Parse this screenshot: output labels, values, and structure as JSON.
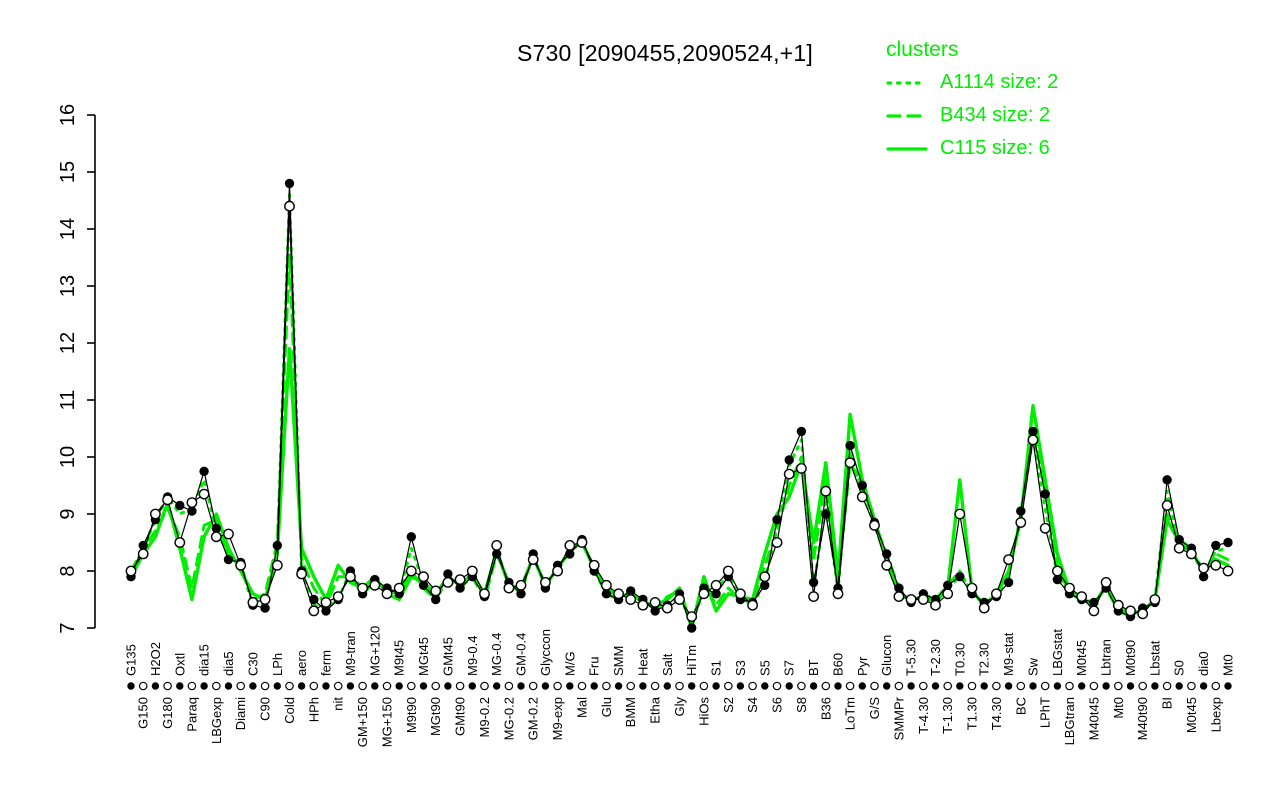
{
  "title": "S730 [2090455,2090524,+1]",
  "colors": {
    "cluster": "#00ee00",
    "probe": "#000000",
    "background": "#ffffff"
  },
  "legend": {
    "title": "clusters",
    "entries": [
      {
        "label": "A1114 size: 2",
        "line": "dotted"
      },
      {
        "label": "B434 size: 2",
        "line": "dashed"
      },
      {
        "label": "C115 size: 6",
        "line": "solid"
      }
    ]
  },
  "chart_data": {
    "type": "line",
    "title": "S730 [2090455,2090524,+1]",
    "ylim": [
      7,
      16
    ],
    "y_ticks": [
      7,
      8,
      9,
      10,
      11,
      12,
      13,
      14,
      15,
      16
    ],
    "grid": false,
    "legend_position": "top-right",
    "x_label_rotation": -90,
    "categories": [
      "G135",
      "G150",
      "H2O2",
      "G180",
      "Oxtl",
      "Paraq",
      "dia15",
      "LBGexp",
      "dia5",
      "Diami",
      "C30",
      "C90",
      "LPh",
      "Cold",
      "aero",
      "HPh",
      "ferm",
      "nit",
      "M9-tran",
      "GM+150",
      "MG+120",
      "MG+150",
      "M9t45",
      "M9t90",
      "MGt45",
      "MGt90",
      "GMt45",
      "GMt90",
      "M9-0.4",
      "M9-0.2",
      "MG-0.4",
      "MG-0.2",
      "GM-0.4",
      "GM-0.2",
      "Glyccon",
      "M9-exp",
      "M/G",
      "Mal",
      "Fru",
      "Glu",
      "SMM",
      "BMM",
      "Heat",
      "Etha",
      "Salt",
      "Gly",
      "HiTm",
      "HiOs",
      "S1",
      "S2",
      "S3",
      "S4",
      "S5",
      "S6",
      "S7",
      "S8",
      "BT",
      "B36",
      "B60",
      "LoTm",
      "Pyr",
      "G/S",
      "Glucon",
      "SMMPr",
      "T-5.30",
      "T-4.30",
      "T-2.30",
      "T-1.30",
      "T0.30",
      "T1.30",
      "T2.30",
      "T4.30",
      "M9-stat",
      "BC",
      "Sw",
      "LPhT",
      "LBGstat",
      "LBGtran",
      "M0t45",
      "M40t45",
      "Lbtran",
      "Mt0",
      "M0t90",
      "M40t90",
      "Lbstat",
      "BI",
      "S0",
      "M0t45",
      "dia0",
      "Lbexp",
      "Mt0"
    ],
    "series": [
      {
        "name": "A1114",
        "role": "cluster",
        "line": "dotted",
        "size": 2,
        "values": [
          7.95,
          8.4,
          8.9,
          9.3,
          9.0,
          9.1,
          9.6,
          8.7,
          8.3,
          8.1,
          7.4,
          7.4,
          8.4,
          14.6,
          8.0,
          7.4,
          7.35,
          7.5,
          8.0,
          7.65,
          7.8,
          7.65,
          7.6,
          8.4,
          7.8,
          7.55,
          7.9,
          7.75,
          7.95,
          7.55,
          8.35,
          7.75,
          7.65,
          8.25,
          7.75,
          8.05,
          8.35,
          8.5,
          8.05,
          7.65,
          7.55,
          7.6,
          7.45,
          7.35,
          7.4,
          7.55,
          7.1,
          7.65,
          7.65,
          7.95,
          7.55,
          7.4,
          7.8,
          8.8,
          9.85,
          10.3,
          7.7,
          9.2,
          7.65,
          10.1,
          9.4,
          8.8,
          8.2,
          7.6,
          7.5,
          7.55,
          7.45,
          7.7,
          7.9,
          7.65,
          7.4,
          7.6,
          7.95,
          8.95,
          10.35,
          9.1,
          7.9,
          7.65,
          7.5,
          7.4,
          7.75,
          7.35,
          7.25,
          7.3,
          7.5,
          9.4,
          8.45,
          8.35,
          7.95,
          8.35,
          8.4
        ]
      },
      {
        "name": "B434",
        "role": "cluster",
        "line": "dashed",
        "size": 2,
        "values": [
          8.0,
          8.4,
          8.7,
          9.1,
          8.6,
          7.7,
          8.8,
          8.9,
          8.3,
          8.1,
          7.5,
          7.6,
          8.5,
          13.55,
          8.2,
          7.7,
          7.4,
          7.9,
          7.9,
          7.6,
          7.8,
          7.7,
          7.6,
          8.0,
          7.7,
          7.5,
          7.85,
          7.7,
          7.9,
          7.5,
          8.3,
          7.8,
          7.6,
          8.3,
          7.7,
          8.1,
          8.3,
          8.55,
          8.0,
          7.6,
          7.5,
          7.65,
          7.5,
          7.3,
          7.55,
          7.65,
          7.05,
          7.8,
          7.4,
          7.7,
          7.5,
          7.45,
          8.1,
          8.7,
          9.5,
          10.0,
          8.2,
          9.6,
          7.8,
          9.9,
          9.5,
          8.85,
          8.3,
          7.7,
          7.45,
          7.6,
          7.5,
          7.75,
          8.0,
          7.6,
          7.45,
          7.55,
          7.9,
          9.0,
          10.5,
          9.4,
          8.1,
          7.6,
          7.5,
          7.45,
          7.7,
          7.3,
          7.2,
          7.35,
          7.45,
          9.0,
          8.55,
          8.4,
          7.9,
          8.3,
          8.2
        ]
      },
      {
        "name": "C115",
        "role": "cluster",
        "line": "solid",
        "size": 6,
        "values": [
          7.9,
          8.3,
          8.6,
          9.2,
          8.4,
          7.5,
          8.6,
          9.0,
          8.4,
          8.0,
          7.6,
          7.5,
          8.3,
          11.9,
          8.4,
          7.9,
          7.5,
          8.1,
          7.8,
          7.7,
          7.9,
          7.6,
          7.5,
          7.9,
          7.8,
          7.6,
          7.9,
          7.75,
          7.95,
          7.6,
          8.35,
          7.75,
          7.7,
          8.25,
          7.75,
          8.05,
          8.35,
          8.5,
          8.05,
          7.7,
          7.55,
          7.6,
          7.45,
          7.4,
          7.5,
          7.7,
          7.0,
          7.9,
          7.3,
          7.6,
          7.55,
          7.5,
          8.3,
          9.0,
          9.3,
          9.9,
          8.5,
          9.9,
          7.9,
          10.75,
          9.6,
          8.9,
          8.2,
          7.6,
          7.5,
          7.55,
          7.45,
          7.7,
          9.6,
          7.65,
          7.4,
          7.6,
          8.0,
          8.9,
          10.9,
          9.6,
          8.3,
          7.65,
          7.5,
          7.4,
          7.75,
          7.35,
          7.25,
          7.3,
          7.5,
          8.9,
          8.5,
          8.35,
          8.0,
          8.2,
          8.1
        ]
      },
      {
        "name": "probe-filled",
        "role": "probe",
        "marker": "filled",
        "values": [
          7.9,
          8.45,
          8.9,
          9.3,
          9.15,
          9.05,
          9.75,
          8.75,
          8.2,
          8.15,
          7.4,
          7.35,
          8.45,
          14.8,
          8.0,
          7.5,
          7.3,
          7.5,
          8.0,
          7.6,
          7.85,
          7.7,
          7.6,
          8.6,
          7.75,
          7.5,
          7.95,
          7.7,
          7.9,
          7.55,
          8.3,
          7.8,
          7.6,
          8.3,
          7.7,
          8.1,
          8.3,
          8.55,
          8.0,
          7.6,
          7.5,
          7.65,
          7.5,
          7.3,
          7.4,
          7.6,
          7.0,
          7.7,
          7.6,
          7.9,
          7.5,
          7.45,
          7.75,
          8.9,
          9.95,
          10.45,
          7.8,
          9.0,
          7.7,
          10.2,
          9.5,
          8.85,
          8.3,
          7.7,
          7.45,
          7.6,
          7.5,
          7.75,
          7.9,
          7.6,
          7.45,
          7.55,
          7.8,
          9.05,
          10.45,
          9.35,
          7.85,
          7.6,
          7.5,
          7.45,
          7.7,
          7.3,
          7.2,
          7.35,
          7.45,
          9.6,
          8.55,
          8.4,
          7.9,
          8.45,
          8.5
        ]
      },
      {
        "name": "probe-open",
        "role": "probe",
        "marker": "open",
        "values": [
          8.0,
          8.3,
          9.0,
          9.25,
          8.5,
          9.2,
          9.35,
          8.6,
          8.65,
          8.1,
          7.45,
          7.5,
          8.1,
          14.4,
          7.95,
          7.3,
          7.45,
          7.55,
          7.9,
          7.7,
          7.75,
          7.6,
          7.7,
          8.0,
          7.9,
          7.65,
          7.8,
          7.85,
          8.0,
          7.6,
          8.45,
          7.7,
          7.75,
          8.2,
          7.8,
          8.0,
          8.45,
          8.5,
          8.1,
          7.75,
          7.6,
          7.5,
          7.4,
          7.45,
          7.35,
          7.5,
          7.2,
          7.6,
          7.75,
          8.0,
          7.6,
          7.4,
          7.9,
          8.5,
          9.7,
          9.8,
          7.55,
          9.4,
          7.6,
          9.9,
          9.3,
          8.8,
          8.1,
          7.55,
          7.5,
          7.5,
          7.4,
          7.6,
          9.0,
          7.7,
          7.35,
          7.6,
          8.2,
          8.85,
          10.3,
          8.75,
          8.0,
          7.7,
          7.55,
          7.3,
          7.8,
          7.4,
          7.3,
          7.25,
          7.5,
          9.15,
          8.4,
          8.3,
          8.05,
          8.1,
          8.0
        ]
      }
    ]
  }
}
